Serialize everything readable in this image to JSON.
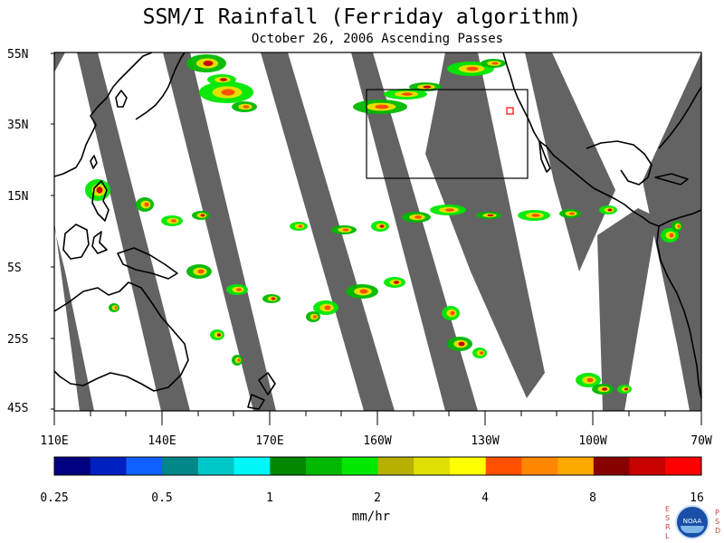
{
  "title": "SSM/I Rainfall (Ferriday algorithm)",
  "subtitle": "October 26, 2006  Ascending Passes",
  "map": {
    "latitude_labels": [
      "55N",
      "35N",
      "15N",
      "5S",
      "25S",
      "45S"
    ],
    "longitude_labels": [
      "110E",
      "140E",
      "170E",
      "160W",
      "130W",
      "100W",
      "70W"
    ],
    "swath_color": "#636363",
    "coast_color": "#000000"
  },
  "colorbar": {
    "tick_labels": [
      "0.25",
      "0.5",
      "1",
      "2",
      "4",
      "8",
      "16"
    ],
    "units": "mm/hr",
    "colors": [
      "#000080",
      "#0020c0",
      "#1060ff",
      "#008888",
      "#00c8c8",
      "#00f8f8",
      "#008800",
      "#00b800",
      "#00e800",
      "#b8b000",
      "#e0e000",
      "#ffff00",
      "#ff5000",
      "#ff8800",
      "#ffa800",
      "#880000",
      "#c80000",
      "#ff0000"
    ]
  },
  "logo": {
    "left_letters": [
      "E",
      "S",
      "R",
      "L"
    ],
    "right_letters": [
      "P",
      "S",
      "D"
    ],
    "badge_text": "NOAA"
  }
}
